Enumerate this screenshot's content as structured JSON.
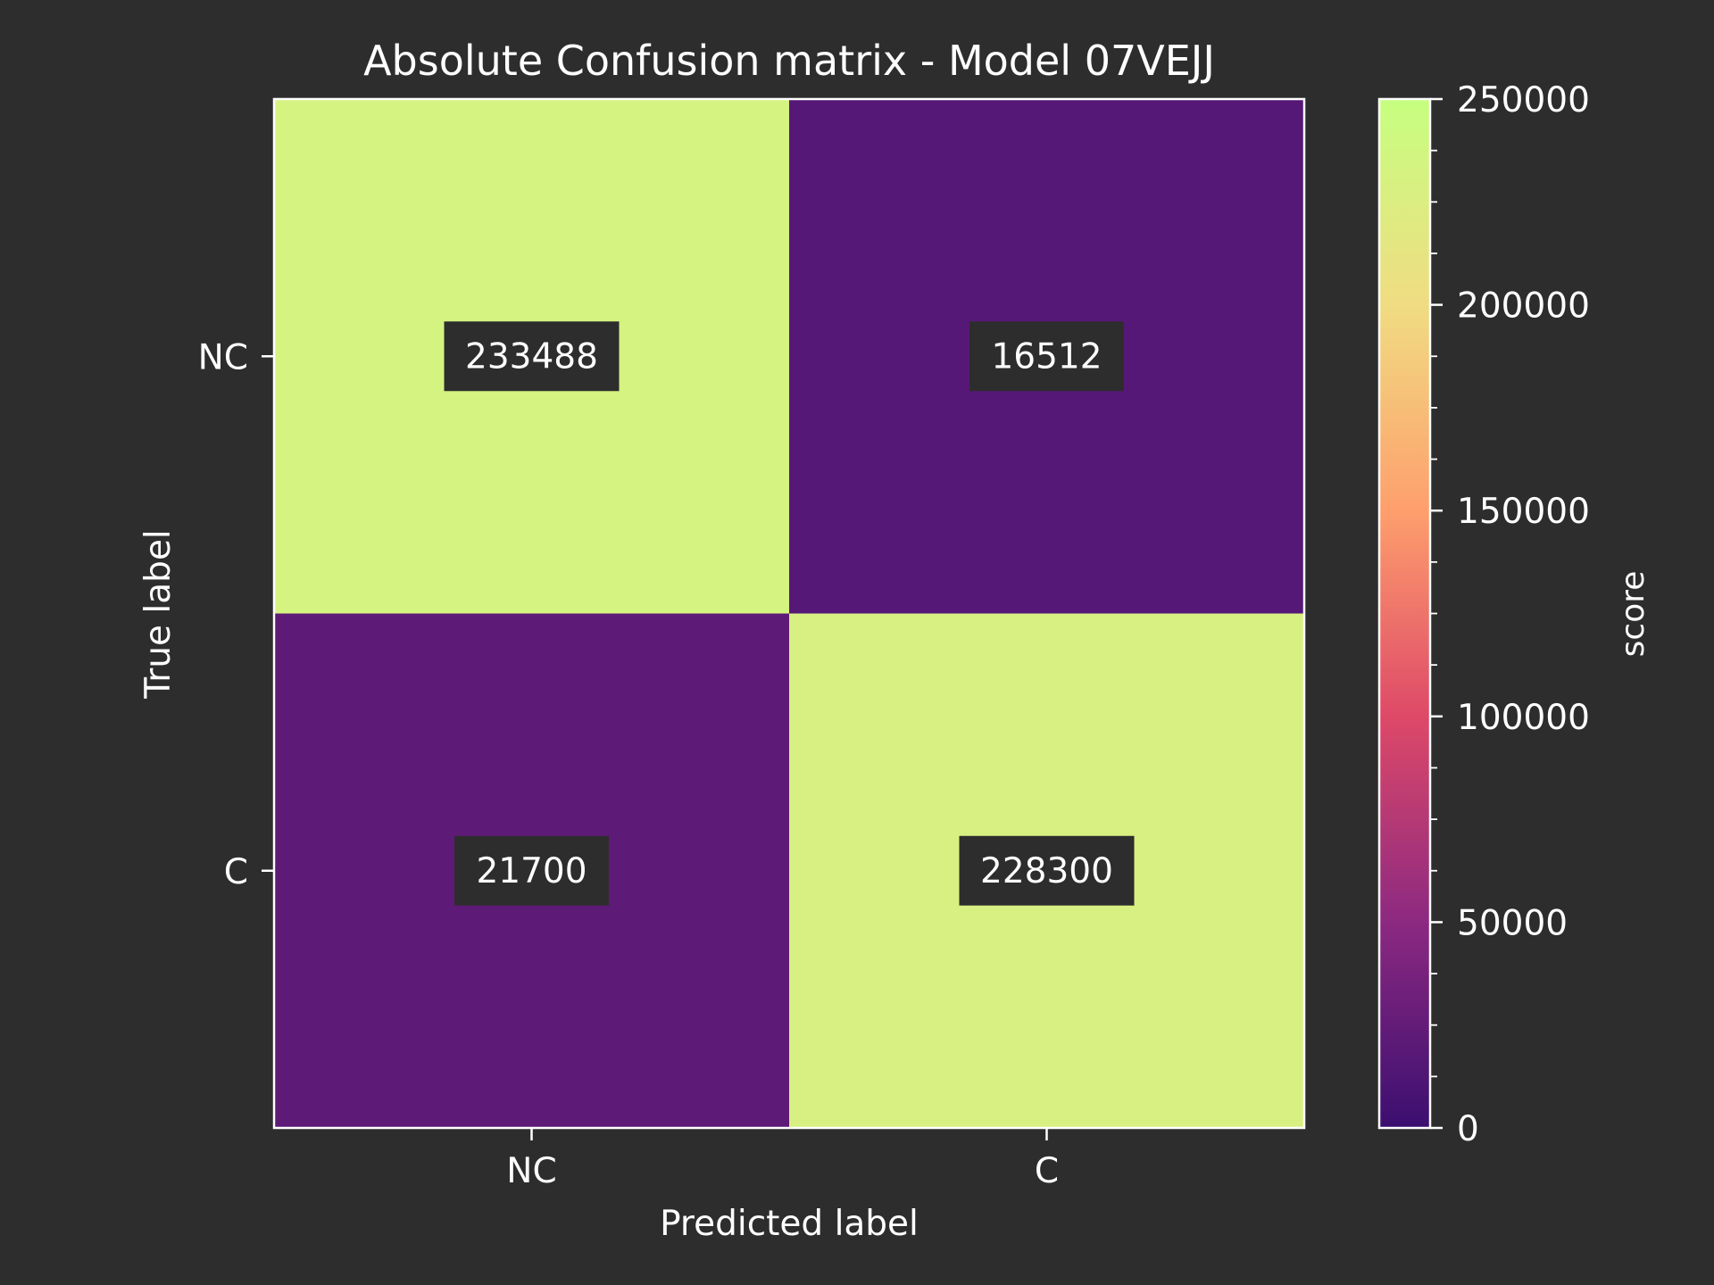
{
  "colors": {
    "background": "#2d2d2d",
    "foreground": "#ffffff",
    "label_box": "#2d2d2d",
    "colormap": [
      "#3b0f70",
      "#8c2981",
      "#de4968",
      "#fe9f6d",
      "#f0dc82",
      "#c6ff80"
    ]
  },
  "chart_data": {
    "type": "heatmap",
    "title": "Absolute Confusion matrix - Model 07VEJJ",
    "xlabel": "Predicted label",
    "ylabel": "True label",
    "x_categories": [
      "NC",
      "C"
    ],
    "y_categories": [
      "NC",
      "C"
    ],
    "values": [
      [
        233488,
        16512
      ],
      [
        21700,
        228300
      ]
    ],
    "value_labels": [
      [
        "233488",
        "16512"
      ],
      [
        "21700",
        "228300"
      ]
    ],
    "colorbar": {
      "label": "score",
      "range": [
        0,
        250000
      ],
      "ticks": [
        0,
        50000,
        100000,
        150000,
        200000,
        250000
      ],
      "tick_labels": [
        "0",
        "50000",
        "100000",
        "150000",
        "200000",
        "250000"
      ],
      "minor_step": 12500
    }
  }
}
